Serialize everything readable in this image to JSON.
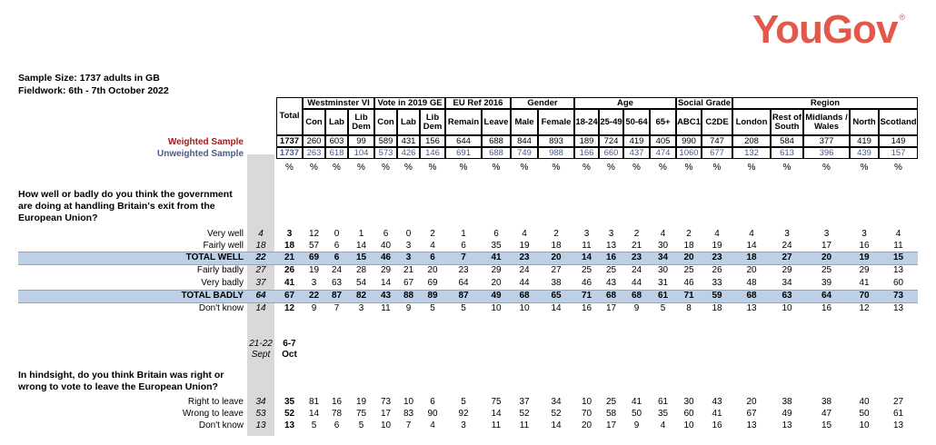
{
  "logo": "YouGov",
  "sample_size": "Sample Size: 1737 adults in GB",
  "fieldwork": "Fieldwork: 6th - 7th October 2022",
  "groups": [
    {
      "label": "Westminster VI"
    },
    {
      "label": "Vote in 2019 GE"
    },
    {
      "label": "EU Ref 2016"
    },
    {
      "label": "Gender"
    },
    {
      "label": "Age"
    },
    {
      "label": "Social Grade"
    },
    {
      "label": "Region"
    }
  ],
  "columns": [
    "Total",
    "Con",
    "Lab",
    "Lib Dem",
    "Con",
    "Lab",
    "Lib Dem",
    "Remain",
    "Leave",
    "Male",
    "Female",
    "18-24",
    "25-49",
    "50-64",
    "65+",
    "ABC1",
    "C2DE",
    "London",
    "Rest of South",
    "Midlands / Wales",
    "North",
    "Scotland"
  ],
  "weighted_label": "Weighted Sample",
  "unweighted_label": "Unweighted Sample",
  "weighted": [
    "1737",
    "260",
    "603",
    "99",
    "589",
    "431",
    "156",
    "644",
    "688",
    "844",
    "893",
    "189",
    "724",
    "419",
    "405",
    "990",
    "747",
    "208",
    "584",
    "377",
    "419",
    "149"
  ],
  "unweighted": [
    "1737",
    "263",
    "618",
    "104",
    "573",
    "426",
    "146",
    "691",
    "688",
    "749",
    "988",
    "166",
    "660",
    "437",
    "474",
    "1060",
    "677",
    "132",
    "613",
    "396",
    "439",
    "157"
  ],
  "pct": "%",
  "q1": {
    "text": "How well or badly do you think the government are doing at handling Britain's exit from the European Union?",
    "rows": [
      {
        "label": "Very well",
        "prev": "4",
        "vals": [
          "3",
          "12",
          "0",
          "1",
          "6",
          "0",
          "2",
          "1",
          "6",
          "4",
          "2",
          "3",
          "3",
          "2",
          "4",
          "2",
          "4",
          "4",
          "3",
          "3",
          "3",
          "4"
        ]
      },
      {
        "label": "Fairly well",
        "prev": "18",
        "vals": [
          "18",
          "57",
          "6",
          "14",
          "40",
          "3",
          "4",
          "6",
          "35",
          "19",
          "18",
          "11",
          "13",
          "21",
          "30",
          "18",
          "19",
          "14",
          "24",
          "17",
          "16",
          "11"
        ]
      },
      {
        "label": "TOTAL WELL",
        "prev": "22",
        "vals": [
          "21",
          "69",
          "6",
          "15",
          "46",
          "3",
          "6",
          "7",
          "41",
          "23",
          "20",
          "14",
          "16",
          "23",
          "34",
          "20",
          "23",
          "18",
          "27",
          "20",
          "19",
          "15"
        ]
      },
      {
        "label": "Fairly badly",
        "prev": "27",
        "vals": [
          "26",
          "19",
          "24",
          "28",
          "29",
          "21",
          "20",
          "23",
          "29",
          "24",
          "27",
          "25",
          "25",
          "24",
          "30",
          "25",
          "26",
          "20",
          "29",
          "25",
          "29",
          "13"
        ]
      },
      {
        "label": "Very badly",
        "prev": "37",
        "vals": [
          "41",
          "3",
          "63",
          "54",
          "14",
          "67",
          "69",
          "64",
          "20",
          "44",
          "38",
          "46",
          "43",
          "44",
          "31",
          "46",
          "33",
          "48",
          "34",
          "39",
          "41",
          "60"
        ]
      },
      {
        "label": "TOTAL BADLY",
        "prev": "64",
        "vals": [
          "67",
          "22",
          "87",
          "82",
          "43",
          "88",
          "89",
          "87",
          "49",
          "68",
          "65",
          "71",
          "68",
          "68",
          "61",
          "71",
          "59",
          "68",
          "63",
          "64",
          "70",
          "73"
        ]
      },
      {
        "label": "Don't know",
        "prev": "14",
        "vals": [
          "12",
          "9",
          "7",
          "3",
          "11",
          "9",
          "5",
          "5",
          "10",
          "10",
          "14",
          "16",
          "17",
          "9",
          "5",
          "8",
          "18",
          "13",
          "10",
          "16",
          "12",
          "13"
        ]
      }
    ]
  },
  "dates": {
    "prev": "21-22 Sept",
    "curr": "6-7 Oct"
  },
  "q2": {
    "text": "In hindsight, do you think Britain was right or wrong to vote to leave the European Union?",
    "rows": [
      {
        "label": "Right to leave",
        "prev": "34",
        "vals": [
          "35",
          "81",
          "16",
          "19",
          "73",
          "10",
          "6",
          "5",
          "75",
          "37",
          "34",
          "10",
          "25",
          "41",
          "61",
          "30",
          "43",
          "20",
          "38",
          "38",
          "40",
          "27"
        ]
      },
      {
        "label": "Wrong to leave",
        "prev": "53",
        "vals": [
          "52",
          "14",
          "78",
          "75",
          "17",
          "83",
          "90",
          "92",
          "14",
          "52",
          "52",
          "70",
          "58",
          "50",
          "35",
          "60",
          "41",
          "67",
          "49",
          "47",
          "50",
          "61"
        ]
      },
      {
        "label": "Don't know",
        "prev": "13",
        "vals": [
          "13",
          "5",
          "6",
          "5",
          "10",
          "7",
          "4",
          "3",
          "11",
          "11",
          "14",
          "20",
          "17",
          "9",
          "4",
          "10",
          "16",
          "13",
          "13",
          "15",
          "10",
          "13"
        ]
      }
    ]
  }
}
